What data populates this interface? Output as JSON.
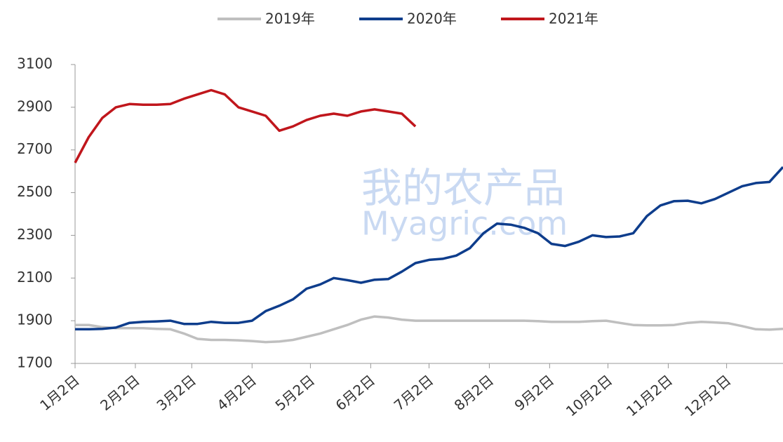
{
  "chart_data": {
    "type": "line",
    "watermark": [
      "我的农产品",
      "Myagric.com"
    ],
    "x": [
      0,
      7,
      14,
      21,
      28,
      35,
      42,
      49,
      56,
      63,
      70,
      77,
      84,
      91,
      98,
      105,
      112,
      119,
      126,
      133,
      140,
      147,
      154,
      161,
      168,
      175,
      182,
      189,
      196,
      203,
      210,
      217,
      224,
      231,
      238,
      245,
      252,
      259,
      266,
      273,
      280,
      287,
      294,
      301,
      308,
      315,
      322,
      329,
      336,
      343,
      350,
      357,
      364
    ],
    "xlim": [
      0,
      364
    ],
    "xticks": [
      {
        "value": 0,
        "label": "1月2日"
      },
      {
        "value": 31,
        "label": "2月2日"
      },
      {
        "value": 60,
        "label": "3月2日"
      },
      {
        "value": 91,
        "label": "4月2日"
      },
      {
        "value": 121,
        "label": "5月2日"
      },
      {
        "value": 152,
        "label": "6月2日"
      },
      {
        "value": 182,
        "label": "7月2日"
      },
      {
        "value": 213,
        "label": "8月2日"
      },
      {
        "value": 244,
        "label": "9月2日"
      },
      {
        "value": 274,
        "label": "10月2日"
      },
      {
        "value": 305,
        "label": "11月2日"
      },
      {
        "value": 335,
        "label": "12月2日"
      }
    ],
    "ylim": [
      1700,
      3100
    ],
    "yticks": [
      1700,
      1900,
      2100,
      2300,
      2500,
      2700,
      2900,
      3100
    ],
    "legend": "top",
    "series": [
      {
        "name": "2019年",
        "color": "#bfbfbf",
        "values": [
          1880,
          1880,
          1870,
          1865,
          1865,
          1865,
          1862,
          1860,
          1840,
          1815,
          1810,
          1810,
          1808,
          1805,
          1800,
          1803,
          1810,
          1825,
          1840,
          1860,
          1880,
          1905,
          1920,
          1915,
          1905,
          1900,
          1900,
          1900,
          1900,
          1900,
          1900,
          1900,
          1900,
          1900,
          1898,
          1895,
          1895,
          1895,
          1898,
          1900,
          1890,
          1880,
          1878,
          1878,
          1880,
          1890,
          1895,
          1892,
          1888,
          1875,
          1860,
          1858,
          1862
        ]
      },
      {
        "name": "2020年",
        "color": "#0e3d8c",
        "values": [
          1860,
          1860,
          1862,
          1868,
          1890,
          1895,
          1897,
          1900,
          1885,
          1885,
          1895,
          1890,
          1890,
          1900,
          1945,
          1970,
          2000,
          2050,
          2070,
          2100,
          2090,
          2078,
          2092,
          2095,
          2130,
          2170,
          2185,
          2190,
          2205,
          2240,
          2310,
          2355,
          2350,
          2335,
          2310,
          2260,
          2250,
          2270,
          2300,
          2292,
          2295,
          2310,
          2390,
          2440,
          2460,
          2462,
          2450,
          2470,
          2500,
          2530,
          2545,
          2550,
          2620
        ]
      },
      {
        "name": "2021年",
        "color": "#c0161c",
        "values": [
          2640,
          2760,
          2850,
          2900,
          2915,
          2912,
          2912,
          2915,
          2940,
          2960,
          2980,
          2960,
          2900,
          2880,
          2860,
          2790,
          2810,
          2840,
          2860,
          2870,
          2860,
          2880,
          2890,
          2880,
          2870,
          2810,
          null,
          null,
          null,
          null,
          null,
          null,
          null,
          null,
          null,
          null,
          null,
          null,
          null,
          null,
          null,
          null,
          null,
          null,
          null,
          null,
          null,
          null,
          null,
          null,
          null,
          null,
          null
        ]
      }
    ]
  }
}
